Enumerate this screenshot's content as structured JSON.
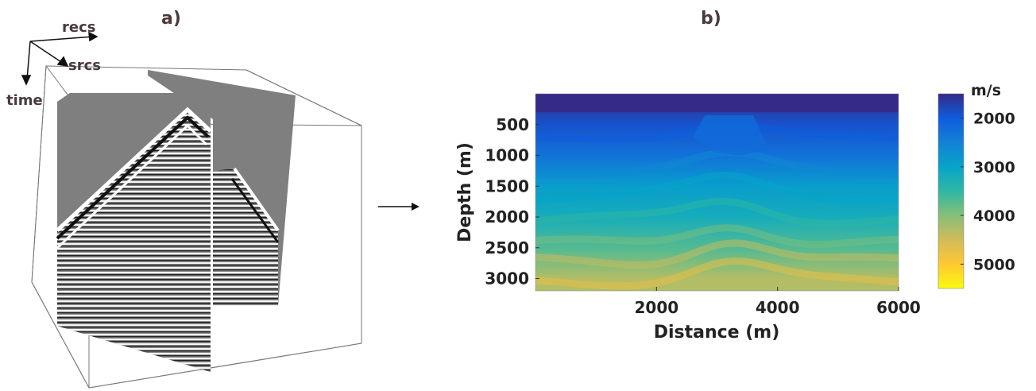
{
  "panels": {
    "a": {
      "label": "a)",
      "axes": {
        "recs": "recs",
        "srcs": "srcs",
        "time": "time"
      }
    },
    "b": {
      "label": "b)"
    }
  },
  "chart_data": {
    "type": "heatmap",
    "xlabel": "Distance (m)",
    "ylabel": "Depth (m)",
    "xlim": [
      0,
      6000
    ],
    "ylim": [
      3200,
      0
    ],
    "xticks": [
      2000,
      4000,
      6000
    ],
    "yticks": [
      500,
      1000,
      1500,
      2000,
      2500,
      3000
    ],
    "colorbar": {
      "label": "m/s",
      "range": [
        1500,
        5500
      ],
      "ticks": [
        2000,
        3000,
        4000,
        5000
      ],
      "colormap": "parula",
      "stops": [
        "#352a87",
        "#0f5cdd",
        "#1481d6",
        "#06a4ca",
        "#2eb7a4",
        "#87bf77",
        "#d1bb59",
        "#fec832",
        "#f9fb0e"
      ]
    },
    "velocity_profile": [
      {
        "depth": 0,
        "velocity": 1500
      },
      {
        "depth": 500,
        "velocity": 1900
      },
      {
        "depth": 1000,
        "velocity": 2300
      },
      {
        "depth": 1500,
        "velocity": 2900
      },
      {
        "depth": 2000,
        "velocity": 3200
      },
      {
        "depth": 2500,
        "velocity": 3700
      },
      {
        "depth": 3000,
        "velocity": 4300
      }
    ]
  }
}
